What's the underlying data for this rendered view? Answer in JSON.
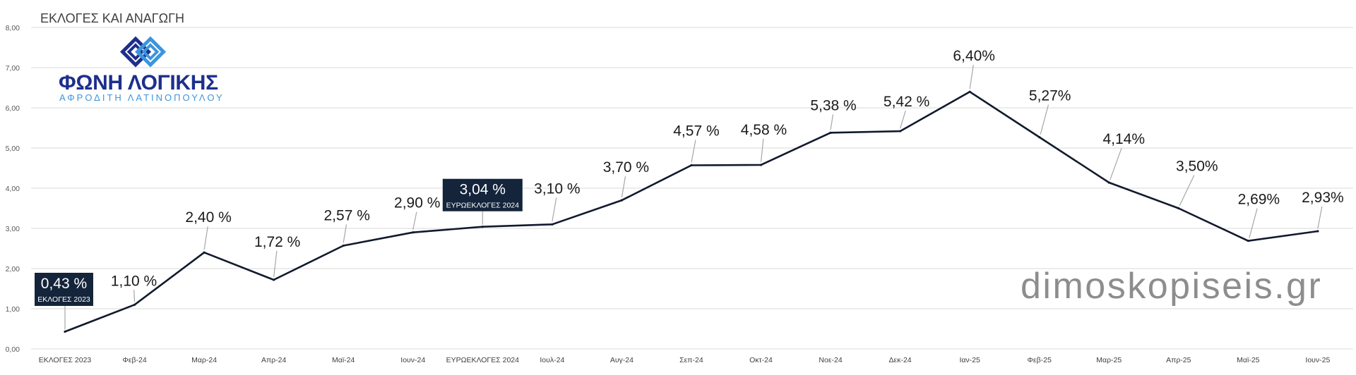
{
  "chart_data": {
    "type": "line",
    "title": "ΕΚΛΟΓΕΣ ΚΑΙ ΑΝΑΓΩΓΗ",
    "categories": [
      "ΕΚΛΟΓΕΣ 2023",
      "Φεβ-24",
      "Μαρ-24",
      "Απρ-24",
      "Μαϊ-24",
      "Ιουν-24",
      "ΕΥΡΩΕΚΛΟΓΕΣ 2024",
      "Ιουλ-24",
      "Αυγ-24",
      "Σεπ-24",
      "Οκτ-24",
      "Νοε-24",
      "Δεκ-24",
      "Ιαν-25",
      "Φεβ-25",
      "Μαρ-25",
      "Απρ-25",
      "Μαϊ-25",
      "Ιουν-25"
    ],
    "series": [
      {
        "values": [
          0.43,
          1.1,
          2.4,
          1.72,
          2.57,
          2.9,
          3.04,
          3.1,
          3.7,
          4.57,
          4.58,
          5.38,
          5.42,
          6.4,
          5.27,
          4.14,
          3.5,
          2.69,
          2.93
        ],
        "data_labels": [
          "0,43 %",
          "1,10 %",
          "2,40 %",
          "1,72 %",
          "2,57 %",
          "2,90 %",
          "3,04 %",
          "3,10 %",
          "3,70 %",
          "4,57 %",
          "4,58 %",
          "5,38 %",
          "5,42 %",
          "6,40%",
          "5,27%",
          "4,14%",
          "3,50%",
          "2,69%",
          "2,93%"
        ]
      }
    ],
    "callouts": [
      {
        "index": 0,
        "caption": "ΕΚΛΟΓΕΣ 2023"
      },
      {
        "index": 6,
        "caption": "ΕΥΡΩΕΚΛΟΓΕΣ 2024"
      }
    ],
    "y_ticks": [
      "0,00",
      "1,00",
      "2,00",
      "3,00",
      "4,00",
      "5,00",
      "6,00",
      "7,00",
      "8,00"
    ],
    "ylim": [
      0,
      8
    ],
    "grid": true,
    "colors": {
      "line": "#111a2d",
      "callout_box": "#14243a",
      "grid": "#d9d9d9",
      "leader": "#a6a6a6"
    }
  },
  "logo": {
    "name": "ΦΩΝΗ ΛΟΓΙΚΗΣ",
    "subtitle": "ΑΦΡΟΔΙΤΗ ΛΑΤΙΝΟΠΟΥΛΟΥ",
    "icon": "interlocked-diamonds-icon",
    "colors": {
      "primary": "#1d2f8c",
      "secondary": "#3c95dc"
    }
  },
  "watermark": {
    "text": "dimoskopiseis.gr",
    "color": "#8d8d8d"
  }
}
